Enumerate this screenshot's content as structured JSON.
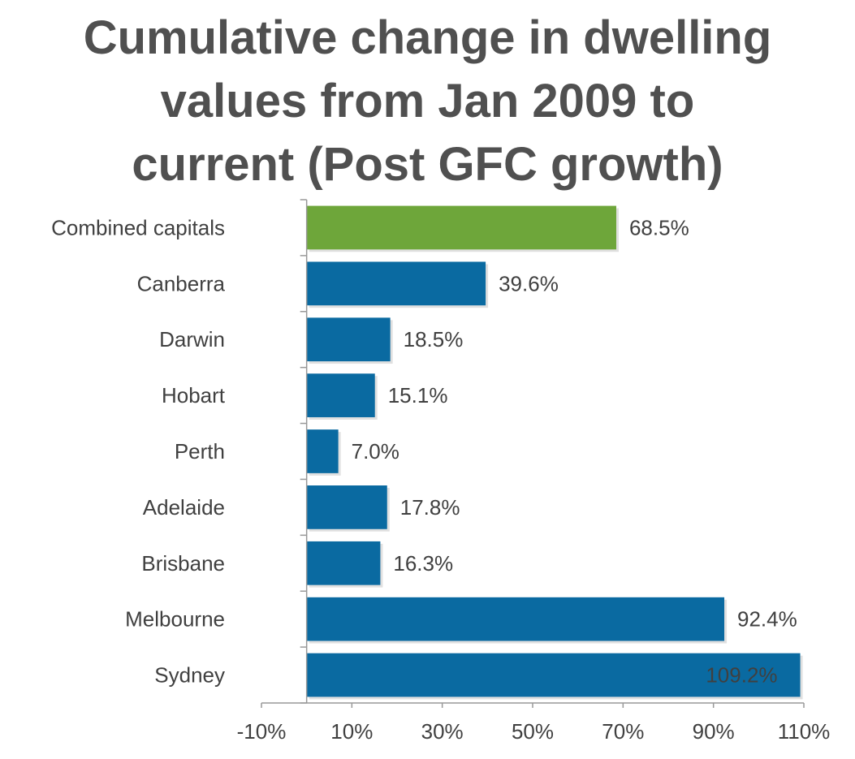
{
  "chart_data": {
    "type": "bar",
    "orientation": "horizontal",
    "title_lines": [
      "Cumulative change in dwelling",
      "values from Jan 2009 to",
      "current (Post GFC growth)"
    ],
    "categories": [
      "Combined capitals",
      "Canberra",
      "Darwin",
      "Hobart",
      "Perth",
      "Adelaide",
      "Brisbane",
      "Melbourne",
      "Sydney"
    ],
    "values": [
      68.5,
      39.6,
      18.5,
      15.1,
      7.0,
      17.8,
      16.3,
      92.4,
      109.2
    ],
    "value_labels": [
      "68.5%",
      "39.6%",
      "18.5%",
      "15.1%",
      "7.0%",
      "17.8%",
      "16.3%",
      "92.4%",
      "109.2%"
    ],
    "highlight_category": "Combined capitals",
    "xlim": [
      -10,
      110
    ],
    "x_ticks": [
      -10,
      10,
      30,
      50,
      70,
      90,
      110
    ],
    "x_tick_labels": [
      "-10%",
      "10%",
      "30%",
      "50%",
      "70%",
      "90%",
      "110%"
    ],
    "xlabel": "",
    "ylabel": "",
    "grid": false,
    "legend": "none",
    "colors": {
      "bar": "#0a6aa1",
      "highlight": "#6ea63a",
      "axis": "#999999",
      "text": "#404040",
      "title": "#505050",
      "inside_label": "#ffffff"
    }
  }
}
